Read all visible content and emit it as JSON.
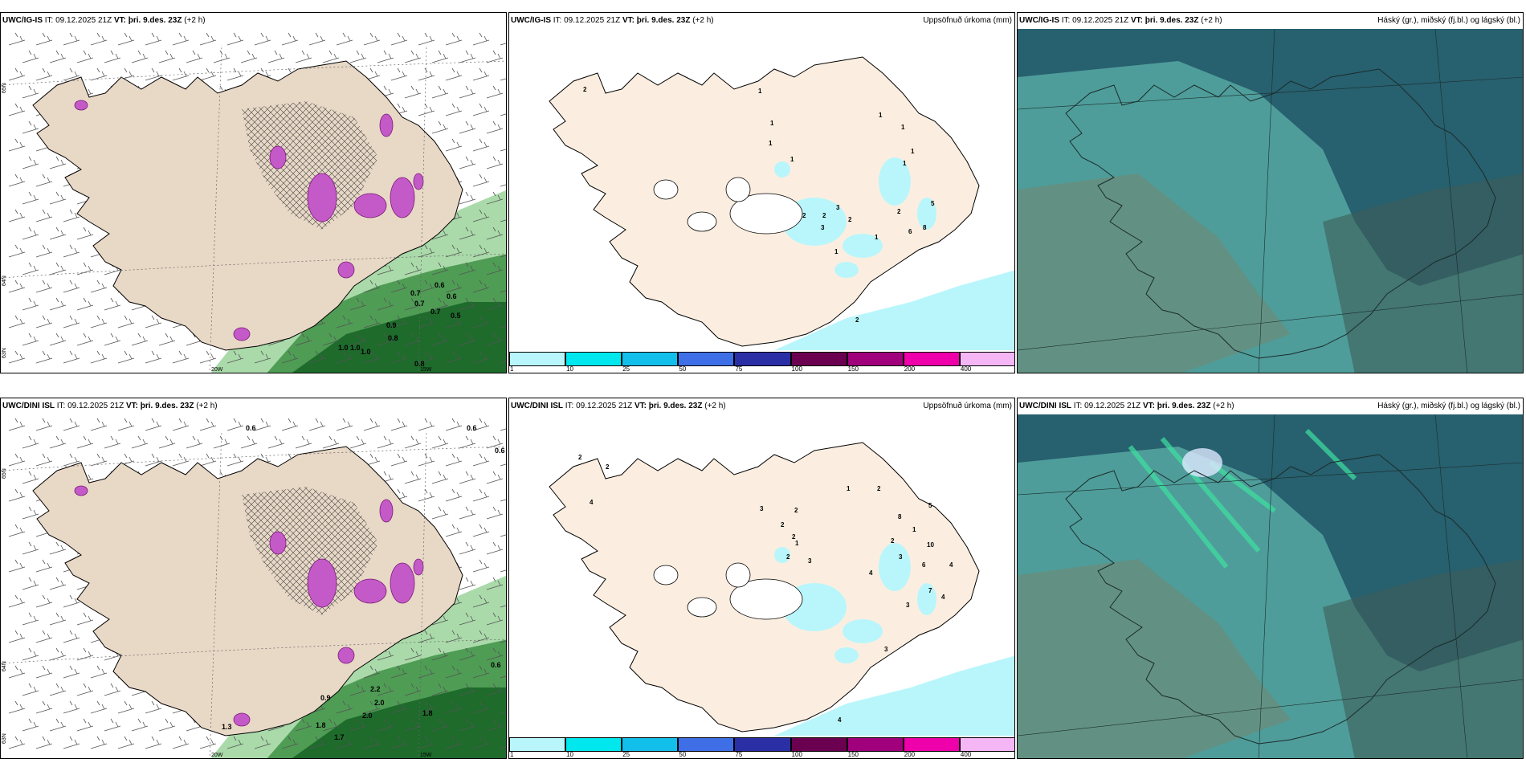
{
  "rows": [
    {
      "model": "UWC/IG-IS",
      "wind": {
        "init_label": "IT:",
        "init": "09.12.2025 21Z",
        "valid_label": "VT:",
        "valid": "þri. 9.des. 23Z",
        "lead": "(+2 h)",
        "values": [
          "0.6",
          "0.7",
          "0.7",
          "0.6",
          "0.7",
          "0.5",
          "0.9",
          "0.8",
          "1.0",
          "1.0",
          "0.9",
          "0.8",
          "1.0"
        ],
        "lat_labels": [
          "65N",
          "64N",
          "63N"
        ],
        "lon_labels": [
          "20W",
          "15W"
        ]
      },
      "precip": {
        "init_label": "IT:",
        "init": "09.12.2025 21Z",
        "valid_label": "VT:",
        "valid": "þri. 9.des. 23Z",
        "lead": "(+2 h)",
        "title": "Uppsöfnuð úrkoma (mm)",
        "values": [
          "2",
          "1",
          "1",
          "1",
          "1",
          "1",
          "1",
          "1",
          "1",
          "2",
          "2",
          "3",
          "2",
          "3",
          "2",
          "5",
          "6",
          "8",
          "1",
          "1",
          "2"
        ]
      },
      "cloud": {
        "init_label": "IT:",
        "init": "09.12.2025 21Z",
        "valid_label": "VT:",
        "valid": "þri. 9.des. 23Z",
        "lead": "(+2 h)",
        "title": "Háský (gr.), miðský (fj.bl.) og lágský (bl.)"
      }
    },
    {
      "model": "UWC/DINI ISL",
      "wind": {
        "init_label": "IT:",
        "init": "09.12.2025 21Z",
        "valid_label": "VT:",
        "valid": "þri. 9.des. 23Z",
        "lead": "(+2 h)",
        "values": [
          "0.6",
          "0.6",
          "0.6",
          "0.5",
          "0.9",
          "2.2",
          "2.0",
          "2.0",
          "1.8",
          "1.7",
          "1.3",
          "1.8",
          "0.6"
        ],
        "lat_labels": [
          "65N",
          "64N",
          "63N"
        ],
        "lon_labels": [
          "20W",
          "15W"
        ]
      },
      "precip": {
        "init_label": "IT:",
        "init": "09.12.2025 21Z",
        "valid_label": "VT:",
        "valid": "þri. 9.des. 23Z",
        "lead": "(+2 h)",
        "title": "Uppsöfnuð úrkoma (mm)",
        "values": [
          "2",
          "4",
          "2",
          "3",
          "2",
          "2",
          "2",
          "1",
          "2",
          "3",
          "1",
          "2",
          "5",
          "1",
          "2",
          "3",
          "8",
          "4",
          "6",
          "7",
          "10",
          "4",
          "4",
          "3",
          "3",
          "4"
        ]
      },
      "cloud": {
        "init_label": "IT:",
        "init": "09.12.2025 21Z",
        "valid_label": "VT:",
        "valid": "þri. 9.des. 23Z",
        "lead": "(+2 h)",
        "title": "Háský (gr.), miðský (fj.bl.) og lágský (bl.)"
      }
    }
  ],
  "colorbar": {
    "labels": [
      "1",
      "10",
      "25",
      "50",
      "75",
      "100",
      "150",
      "200",
      "400"
    ],
    "colors": [
      "#b9f6fb",
      "#00e8ee",
      "#12bfea",
      "#3f6fe6",
      "#2b2fa6",
      "#6b0050",
      "#a0007c",
      "#ee00aa",
      "#f4b6f4"
    ]
  },
  "colors": {
    "land": "#fbeee0",
    "sea_precip": "#b9f6fb",
    "cloud_dark": "#27606e",
    "cloud_light": "#6fcfbf",
    "green_dark": "#1e6b2c",
    "green_light": "#9bd49b",
    "magenta": "#c45ac8"
  }
}
